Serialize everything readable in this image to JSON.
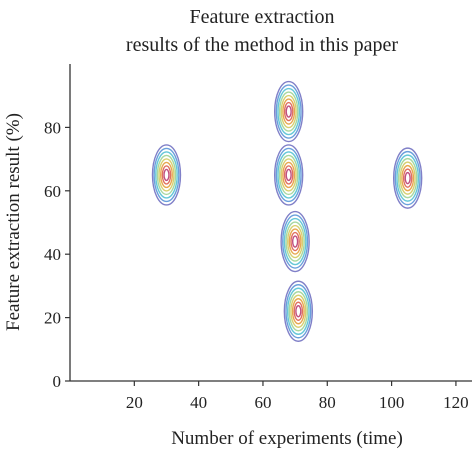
{
  "chart_data": {
    "type": "contour",
    "title_lines": [
      "Feature extraction",
      "results of the method in this paper"
    ],
    "xlabel": "Number of experiments (time)",
    "ylabel": "Feature extraction result (%)",
    "xlim": [
      0,
      125
    ],
    "ylim": [
      0,
      100
    ],
    "xticks": [
      20,
      40,
      60,
      80,
      100,
      120
    ],
    "yticks": [
      0,
      20,
      40,
      60,
      80
    ],
    "grid": false,
    "legend": "none",
    "contour_level_colors": [
      "#8080c8",
      "#6aa0dc",
      "#66c8d8",
      "#a8d8a0",
      "#d8d070",
      "#e8a850",
      "#e07060",
      "#c05080"
    ],
    "peaks": [
      {
        "x": 30,
        "y": 65
      },
      {
        "x": 68,
        "y": 85
      },
      {
        "x": 68,
        "y": 65
      },
      {
        "x": 70,
        "y": 44
      },
      {
        "x": 71,
        "y": 22
      },
      {
        "x": 105,
        "y": 64
      }
    ]
  }
}
